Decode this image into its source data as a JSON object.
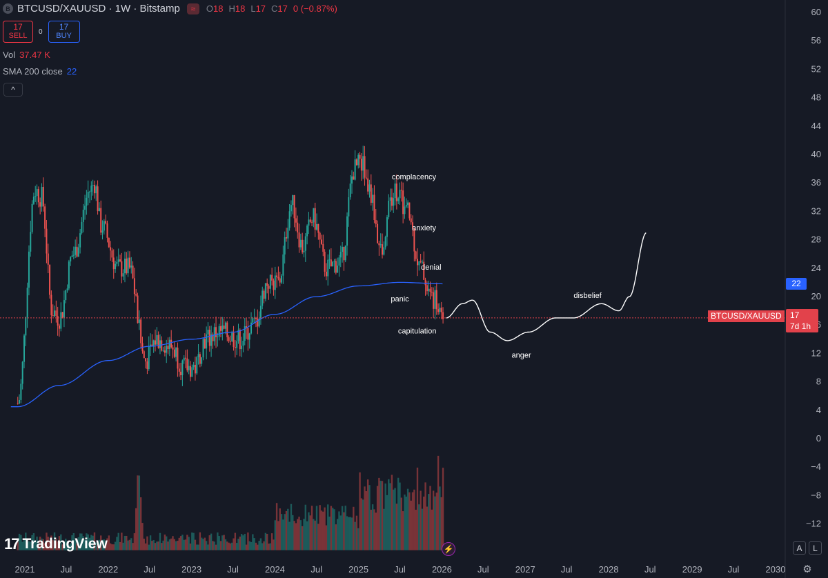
{
  "header": {
    "symbol_icon": "B",
    "symbol": "BTCUSD/XAUUSD · 1W · Bitstamp",
    "indicator_icon": "≈",
    "o_label": "O",
    "o": "18",
    "h_label": "H",
    "h": "18",
    "l_label": "L",
    "l": "17",
    "c_label": "C",
    "c": "17",
    "change": "0 (−0.87%)"
  },
  "trade": {
    "sell_price": "17",
    "sell_label": "SELL",
    "spread": "0",
    "buy_price": "17",
    "buy_label": "BUY"
  },
  "indicators": {
    "vol_label": "Vol",
    "vol_value": "37.47 K",
    "sma_label": "SMA 200 close",
    "sma_value": "22"
  },
  "collapse_icon": "chevron-up-icon",
  "collapse_glyph": "^",
  "logo": {
    "mark": "17",
    "text": "TradingView"
  },
  "price_tags": {
    "name": "BTCUSD/XAUUSD",
    "price": "17",
    "countdown": "7d 1h",
    "sma": "22"
  },
  "buttons": {
    "auto": "A",
    "log": "L",
    "settings_icon": "gear-icon",
    "settings_glyph": "⚙",
    "flash_icon": "lightning-icon",
    "flash_glyph": "⚡"
  },
  "colors": {
    "background": "#161a25",
    "up": "#26a69a",
    "down": "#ef5350",
    "sma": "#2962ff",
    "projection": "#ffffff",
    "price_line": "#e2424b"
  },
  "chart_data": {
    "type": "candlestick",
    "title": "BTCUSD/XAUUSD · 1W · Bitstamp",
    "y_ticks": [
      60,
      56,
      52,
      48,
      44,
      40,
      36,
      32,
      28,
      24,
      20,
      16,
      12,
      8,
      4,
      0,
      -4,
      -8,
      -12
    ],
    "ylim": [
      -16,
      62
    ],
    "x_ticks": [
      "2021",
      "Jul",
      "2022",
      "Jul",
      "2023",
      "Jul",
      "2024",
      "Jul",
      "2025",
      "Jul",
      "2026",
      "Jul",
      "2027",
      "Jul",
      "2028",
      "Jul",
      "2029",
      "Jul",
      "2030"
    ],
    "last_price": 17,
    "price_path": [
      [
        "2020-12-01",
        5
      ],
      [
        "2021-02-15",
        35
      ],
      [
        "2021-03-15",
        34
      ],
      [
        "2021-05-01",
        18
      ],
      [
        "2021-06-01",
        17
      ],
      [
        "2021-08-01",
        26
      ],
      [
        "2021-10-15",
        35
      ],
      [
        "2021-11-01",
        36
      ],
      [
        "2021-12-01",
        30
      ],
      [
        "2022-02-15",
        24
      ],
      [
        "2022-04-01",
        24
      ],
      [
        "2022-06-15",
        11
      ],
      [
        "2022-08-01",
        14
      ],
      [
        "2022-10-01",
        13
      ],
      [
        "2022-12-01",
        10
      ],
      [
        "2023-01-15",
        10
      ],
      [
        "2023-03-01",
        14
      ],
      [
        "2023-05-01",
        15
      ],
      [
        "2023-08-01",
        14
      ],
      [
        "2023-10-01",
        16
      ],
      [
        "2023-12-01",
        22
      ],
      [
        "2024-01-15",
        22
      ],
      [
        "2024-03-15",
        33
      ],
      [
        "2024-05-01",
        27
      ],
      [
        "2024-06-15",
        31
      ],
      [
        "2024-08-15",
        24
      ],
      [
        "2024-10-15",
        25
      ],
      [
        "2024-12-15",
        38
      ],
      [
        "2025-01-15",
        39
      ],
      [
        "2025-02-15",
        35
      ],
      [
        "2025-04-15",
        26
      ],
      [
        "2025-05-15",
        34
      ],
      [
        "2025-06-15",
        35
      ],
      [
        "2025-08-01",
        32
      ],
      [
        "2025-10-01",
        24
      ],
      [
        "2025-11-15",
        20
      ],
      [
        "2026-01-10",
        17
      ]
    ],
    "sma_200": [
      [
        "2020-12-01",
        4.5
      ],
      [
        "2021-06-01",
        7.5
      ],
      [
        "2022-01-01",
        11
      ],
      [
        "2022-07-01",
        13
      ],
      [
        "2023-01-01",
        14
      ],
      [
        "2023-07-01",
        15
      ],
      [
        "2024-01-01",
        17.5
      ],
      [
        "2024-07-01",
        20
      ],
      [
        "2025-01-01",
        21.5
      ],
      [
        "2025-07-01",
        22
      ],
      [
        "2026-01-10",
        21.8
      ]
    ],
    "volume": {
      "peaks": [
        [
          "2022-05-15",
          3.0
        ],
        [
          "2025-05-01",
          -5
        ],
        [
          "2025-12-15",
          2.5
        ]
      ]
    },
    "projection": [
      [
        "2026-01-20",
        17
      ],
      [
        "2026-04-01",
        19
      ],
      [
        "2026-05-15",
        19.5
      ],
      [
        "2026-08-01",
        15
      ],
      [
        "2026-10-15",
        13.8
      ],
      [
        "2027-01-15",
        15
      ],
      [
        "2027-05-15",
        17
      ],
      [
        "2027-08-01",
        17
      ],
      [
        "2027-12-01",
        19
      ],
      [
        "2028-02-15",
        18
      ],
      [
        "2028-04-01",
        20
      ],
      [
        "2028-06-15",
        29
      ]
    ],
    "annotations": [
      {
        "label": "complacency",
        "date": "2025-09-01",
        "value": 36.5
      },
      {
        "label": "anxiety",
        "date": "2025-10-15",
        "value": 29.3
      },
      {
        "label": "denial",
        "date": "2025-11-15",
        "value": 23.8
      },
      {
        "label": "panic",
        "date": "2025-07-01",
        "value": 19.3
      },
      {
        "label": "capitulation",
        "date": "2025-09-15",
        "value": 14.8
      },
      {
        "label": "anger",
        "date": "2026-12-15",
        "value": 11.4
      },
      {
        "label": "disbelief",
        "date": "2027-10-01",
        "value": 19.8
      }
    ]
  }
}
